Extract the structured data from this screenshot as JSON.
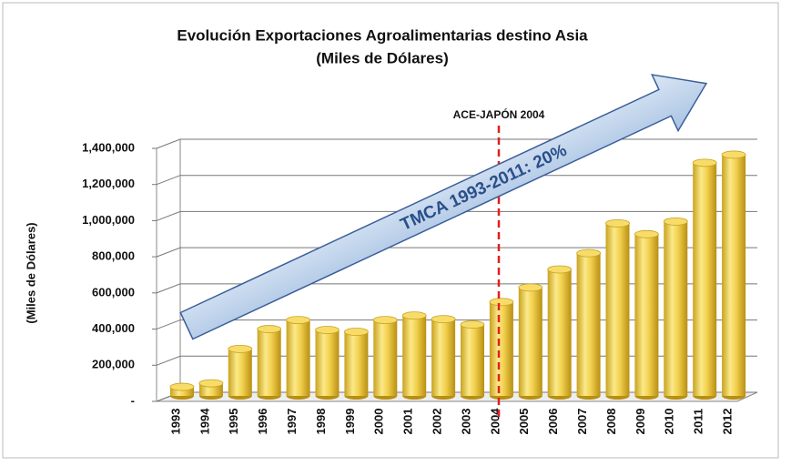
{
  "chart_data": {
    "type": "bar",
    "title": "Evolución Exportaciones Agroalimentarias destino Asia",
    "subtitle": "(Miles de Dólares)",
    "y_label": "(Miles de Dólares)",
    "categories": [
      "1993",
      "1994",
      "1995",
      "1996",
      "1997",
      "1998",
      "1999",
      "2000",
      "2001",
      "2002",
      "2003",
      "2004",
      "2005",
      "2006",
      "2007",
      "2008",
      "2009",
      "2010",
      "2011",
      "2012"
    ],
    "values": [
      60000,
      80000,
      270000,
      380000,
      430000,
      375000,
      365000,
      430000,
      455000,
      435000,
      405000,
      530000,
      610000,
      710000,
      800000,
      965000,
      905000,
      975000,
      1300000,
      1345000
    ],
    "color": "#f2d04e",
    "ylim": [
      0,
      1400000
    ],
    "yticks": [
      {
        "value": 0,
        "label": "-"
      },
      {
        "value": 200000,
        "label": "200,000"
      },
      {
        "value": 400000,
        "label": "400,000"
      },
      {
        "value": 600000,
        "label": "600,000"
      },
      {
        "value": 800000,
        "label": "800,000"
      },
      {
        "value": 1000000,
        "label": "1,000,000"
      },
      {
        "value": 1200000,
        "label": "1,200,000"
      },
      {
        "value": 1400000,
        "label": "1,400,000"
      }
    ],
    "grid": true,
    "annotations": [
      "ACE-JAPÓN 2004",
      "TMCA 1993-2011: 20%"
    ]
  }
}
